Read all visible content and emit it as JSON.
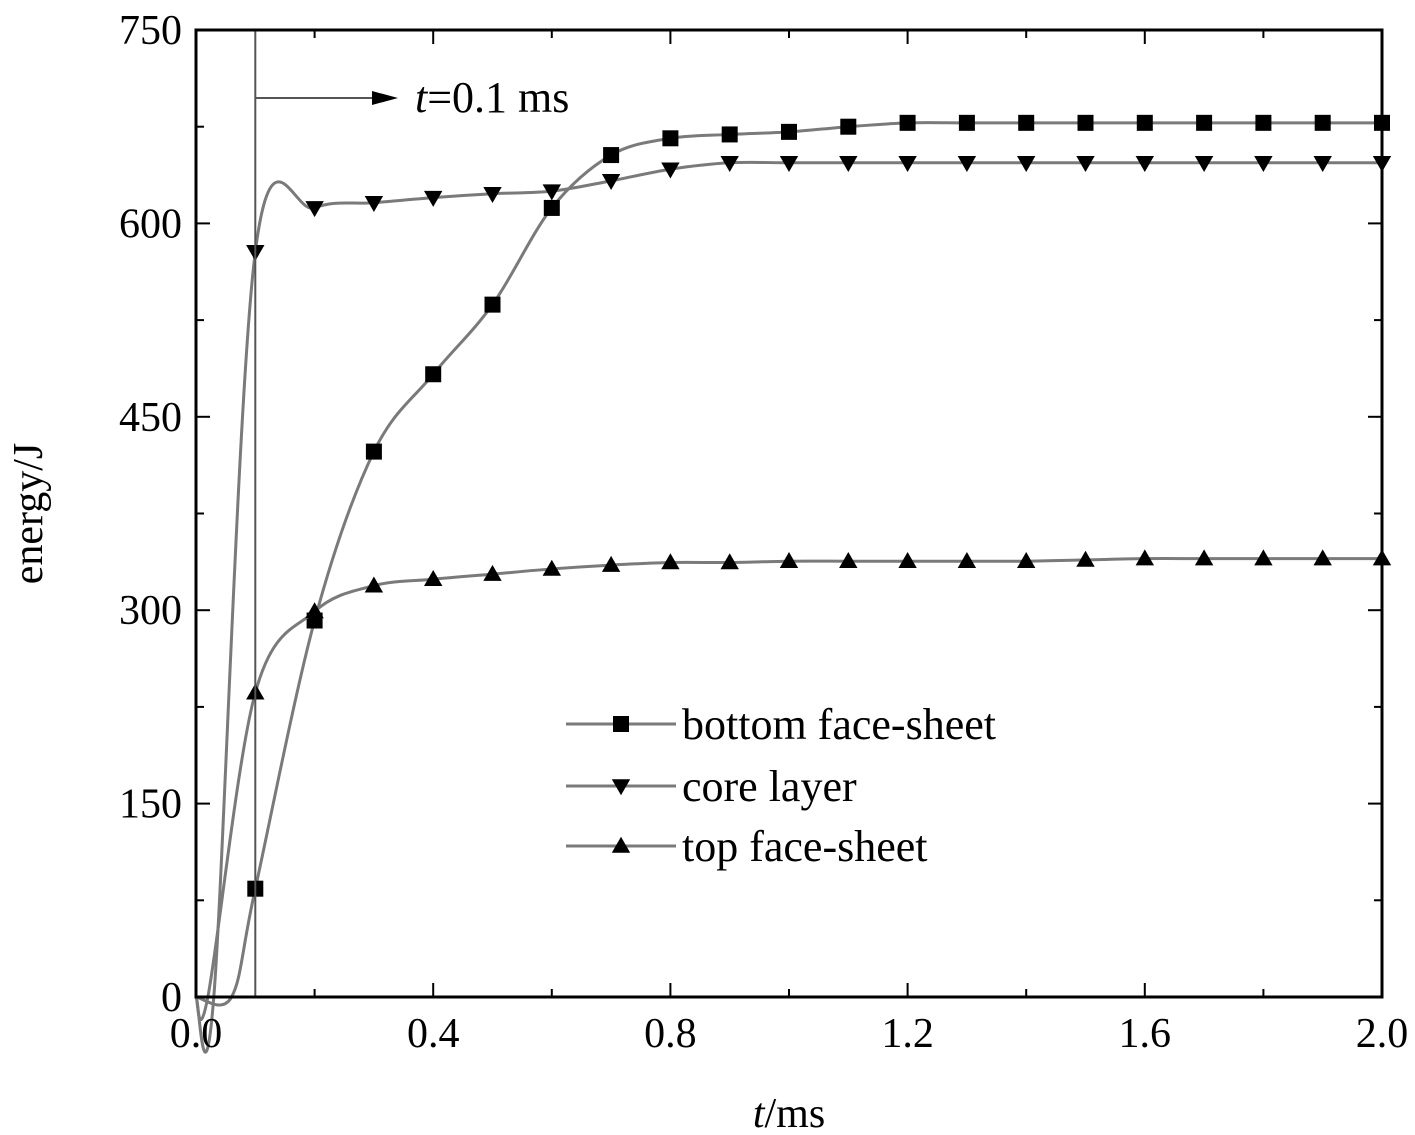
{
  "chart_data": {
    "type": "line",
    "title": "",
    "xlabel_italic": "t",
    "xlabel_rest": "/ms",
    "ylabel": "energy/J",
    "xlim": [
      0,
      2.0
    ],
    "ylim": [
      0,
      750
    ],
    "xticks": [
      "0.0",
      "0.4",
      "0.8",
      "1.2",
      "1.6",
      "2.0"
    ],
    "xtick_values": [
      0,
      0.4,
      0.8,
      1.2,
      1.6,
      2.0
    ],
    "yticks": [
      "0",
      "150",
      "300",
      "450",
      "600",
      "750"
    ],
    "ytick_values": [
      0,
      150,
      300,
      450,
      600,
      750
    ],
    "grid": false,
    "legend_position": "lower-right",
    "annotation": {
      "x": 0.1,
      "label_italic": "t",
      "label_rest": "=0.1 ms"
    },
    "series": [
      {
        "name": "bottom face-sheet",
        "marker": "square",
        "x": [
          0,
          0.06,
          0.1,
          0.2,
          0.3,
          0.4,
          0.5,
          0.6,
          0.7,
          0.8,
          0.9,
          1.0,
          1.1,
          1.2,
          1.3,
          1.4,
          1.5,
          1.6,
          1.7,
          1.8,
          1.9,
          2.0
        ],
        "y": [
          0,
          0,
          84,
          292,
          423,
          483,
          537,
          612,
          653,
          666,
          669,
          671,
          675,
          678,
          678,
          678,
          678,
          678,
          678,
          678,
          678,
          678
        ],
        "marker_x": [
          0.1,
          0.2,
          0.3,
          0.4,
          0.5,
          0.6,
          0.7,
          0.8,
          0.9,
          1.0,
          1.1,
          1.2,
          1.3,
          1.4,
          1.5,
          1.6,
          1.7,
          1.8,
          1.9,
          2.0
        ]
      },
      {
        "name": "core layer",
        "marker": "triangle-down",
        "x": [
          0,
          0.03,
          0.1,
          0.2,
          0.3,
          0.4,
          0.5,
          0.6,
          0.7,
          0.8,
          0.9,
          1.0,
          1.1,
          1.2,
          1.3,
          1.4,
          1.5,
          1.6,
          1.7,
          1.8,
          1.9,
          2.0
        ],
        "y": [
          0,
          0,
          578,
          612,
          616,
          620,
          623,
          625,
          633,
          642,
          647,
          647,
          647,
          647,
          647,
          647,
          647,
          647,
          647,
          647,
          647,
          647
        ],
        "marker_x": [
          0.1,
          0.2,
          0.3,
          0.4,
          0.5,
          0.6,
          0.7,
          0.8,
          0.9,
          1.0,
          1.1,
          1.2,
          1.3,
          1.4,
          1.5,
          1.6,
          1.7,
          1.8,
          1.9,
          2.0
        ]
      },
      {
        "name": "top face-sheet",
        "marker": "triangle-up",
        "x": [
          0,
          0.02,
          0.1,
          0.2,
          0.3,
          0.4,
          0.5,
          0.6,
          0.7,
          0.8,
          0.9,
          1.0,
          1.1,
          1.2,
          1.3,
          1.4,
          1.5,
          1.6,
          1.7,
          1.8,
          1.9,
          2.0
        ],
        "y": [
          0,
          0,
          236,
          299,
          319,
          324,
          328,
          332,
          335,
          337,
          337,
          338,
          338,
          338,
          338,
          338,
          339,
          340,
          340,
          340,
          340,
          340
        ],
        "marker_x": [
          0.1,
          0.2,
          0.3,
          0.4,
          0.5,
          0.6,
          0.7,
          0.8,
          0.9,
          1.0,
          1.1,
          1.2,
          1.3,
          1.4,
          1.5,
          1.6,
          1.7,
          1.8,
          1.9,
          2.0
        ]
      }
    ],
    "colors": {
      "line": "#7a7a7a",
      "marker": "#000000",
      "axis": "#000000",
      "annotation_line": "#555555"
    }
  }
}
